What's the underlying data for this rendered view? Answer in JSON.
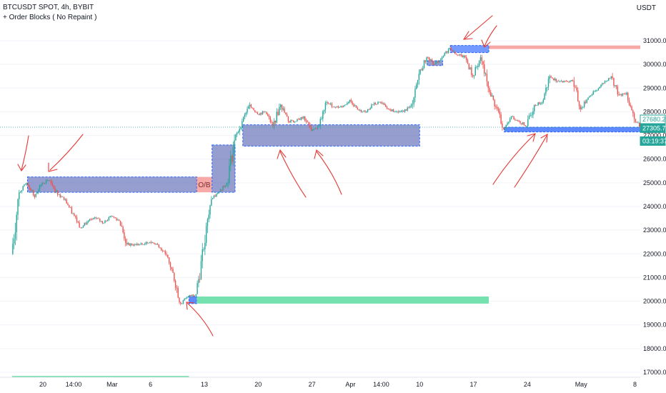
{
  "header": {
    "symbol_line": "BTCUSDT SPOT, 4h, BYBIT",
    "indicator_line": "+ Order Blocks ( No Repaint )",
    "currency": "USDT"
  },
  "annotations": {
    "ob_label": "O/B"
  },
  "price_tags": [
    {
      "name": "reference-price-tag",
      "text": "27680.28",
      "value": 27680.28,
      "style": "outline",
      "color": "#26a69a"
    },
    {
      "name": "last-price-tag",
      "text": "27305.76",
      "value": 27305.76,
      "style": "filled",
      "color": "#26a69a"
    },
    {
      "name": "countdown-tag",
      "text": "03:19:37",
      "value": 27090,
      "style": "filled",
      "color": "#26a69a"
    }
  ],
  "colors": {
    "up": "#26a69a",
    "down": "#ef5350",
    "bull_block": "#2962ff",
    "bear_block": "#ef5350",
    "mitigated_block": "#3f4fa8",
    "target_zone": "#5cdca0",
    "annotation_ink": "#e53935"
  },
  "chart_data": {
    "type": "candlestick",
    "title": "BTCUSDT SPOT, 4h, BYBIT",
    "ylim": [
      16700,
      31700
    ],
    "y_ticks": [
      "31000.00",
      "30000.00",
      "29000.00",
      "28000.00",
      "27000.00",
      "26000.00",
      "25000.00",
      "24000.00",
      "23000.00",
      "22000.00",
      "21000.00",
      "20000.00",
      "19000.00",
      "18000.00",
      "17000.00"
    ],
    "x_ticks": [
      "20",
      "14:00",
      "Mar",
      "6",
      "13",
      "20",
      "27",
      "Apr",
      "14:00",
      "10",
      "17",
      "24",
      "May",
      "8"
    ],
    "close_path": [
      [
        "Feb 16",
        22000
      ],
      [
        "Feb 17",
        24600
      ],
      [
        "Feb 18",
        25000
      ],
      [
        "Feb 19",
        24400
      ],
      [
        "Feb 20",
        25000
      ],
      [
        "Feb 21",
        25100
      ],
      [
        "Feb 22",
        24500
      ],
      [
        "Feb 23",
        24300
      ],
      [
        "Feb 24",
        23700
      ],
      [
        "Feb 25",
        23100
      ],
      [
        "Feb 26",
        23400
      ],
      [
        "Feb 27",
        23500
      ],
      [
        "Feb 28",
        23300
      ],
      [
        "Mar 1",
        23600
      ],
      [
        "Mar 2",
        23400
      ],
      [
        "Mar 3",
        22400
      ],
      [
        "Mar 4",
        22400
      ],
      [
        "Mar 5",
        22400
      ],
      [
        "Mar 6",
        22500
      ],
      [
        "Mar 7",
        22400
      ],
      [
        "Mar 8",
        22000
      ],
      [
        "Mar 9",
        21200
      ],
      [
        "Mar 10",
        19900
      ],
      [
        "Mar 11",
        20200
      ],
      [
        "Mar 12",
        20300
      ],
      [
        "Mar 13",
        22200
      ],
      [
        "Mar 14",
        24300
      ],
      [
        "Mar 15",
        24600
      ],
      [
        "Mar 16",
        25000
      ],
      [
        "Mar 17",
        26800
      ],
      [
        "Mar 18",
        27600
      ],
      [
        "Mar 19",
        28300
      ],
      [
        "Mar 20",
        27900
      ],
      [
        "Mar 21",
        28000
      ],
      [
        "Mar 22",
        27400
      ],
      [
        "Mar 23",
        28300
      ],
      [
        "Mar 24",
        27600
      ],
      [
        "Mar 25",
        27600
      ],
      [
        "Mar 26",
        27800
      ],
      [
        "Mar 27",
        27200
      ],
      [
        "Mar 28",
        27400
      ],
      [
        "Mar 29",
        28400
      ],
      [
        "Mar 30",
        28200
      ],
      [
        "Mar 31",
        28200
      ],
      [
        "Apr 1",
        28500
      ],
      [
        "Apr 2",
        28100
      ],
      [
        "Apr 3",
        28000
      ],
      [
        "Apr 4",
        28300
      ],
      [
        "Apr 5",
        28400
      ],
      [
        "Apr 6",
        28100
      ],
      [
        "Apr 7",
        28000
      ],
      [
        "Apr 8",
        28000
      ],
      [
        "Apr 9",
        28300
      ],
      [
        "Apr 10",
        29600
      ],
      [
        "Apr 11",
        30300
      ],
      [
        "Apr 12",
        30000
      ],
      [
        "Apr 13",
        30300
      ],
      [
        "Apr 14",
        30700
      ],
      [
        "Apr 15",
        30400
      ],
      [
        "Apr 16",
        30300
      ],
      [
        "Apr 17",
        29500
      ],
      [
        "Apr 18",
        30300
      ],
      [
        "Apr 19",
        29000
      ],
      [
        "Apr 20",
        28200
      ],
      [
        "Apr 21",
        27300
      ],
      [
        "Apr 22",
        27800
      ],
      [
        "Apr 23",
        27600
      ],
      [
        "Apr 24",
        27400
      ],
      [
        "Apr 25",
        28300
      ],
      [
        "Apr 26",
        28400
      ],
      [
        "Apr 27",
        29500
      ],
      [
        "Apr 28",
        29300
      ],
      [
        "Apr 29",
        29300
      ],
      [
        "Apr 30",
        29300
      ],
      [
        "May 1",
        28100
      ],
      [
        "May 2",
        28600
      ],
      [
        "May 3",
        28900
      ],
      [
        "May 4",
        29200
      ],
      [
        "May 5",
        29500
      ],
      [
        "May 6",
        28700
      ],
      [
        "May 7",
        28800
      ],
      [
        "May 8",
        27700
      ],
      [
        "May 9",
        27305.76
      ]
    ],
    "order_blocks": [
      {
        "name": "bearish-order-block-feb",
        "kind": "mitigated",
        "from": "Feb 18",
        "to": "Mar 12",
        "top": 25250,
        "bottom": 24600
      },
      {
        "name": "ob-tag",
        "kind": "bearish",
        "from": "Mar 12",
        "to": "Mar 14",
        "top": 25250,
        "bottom": 24600
      },
      {
        "name": "bullish-order-block-mar-13",
        "kind": "mitigated",
        "from": "Mar 14",
        "to": "Mar 17",
        "top": 26600,
        "bottom": 24600
      },
      {
        "name": "bullish-order-block-mar-18",
        "kind": "mitigated",
        "from": "Mar 18",
        "to": "Apr 10",
        "top": 27450,
        "bottom": 26550
      },
      {
        "name": "demand-zone-mar-10",
        "kind": "bullish",
        "from": "Mar 11",
        "to": "Mar 12",
        "top": 20200,
        "bottom": 19900
      },
      {
        "name": "target-zone",
        "kind": "target",
        "from": "Mar 12",
        "to": "Apr 19",
        "top": 20200,
        "bottom": 19900
      },
      {
        "name": "small-order-block-apr-11",
        "kind": "mitigated",
        "from": "Apr 11",
        "to": "Apr 13",
        "top": 30150,
        "bottom": 29950
      },
      {
        "name": "bearish-order-block-apr-14",
        "kind": "mixed",
        "from": "Apr 14",
        "to": "Apr 19",
        "top": 30800,
        "bottom": 30500
      },
      {
        "name": "supply-zone",
        "kind": "bearish",
        "from": "Apr 19",
        "to": "May 10",
        "top": 30800,
        "bottom": 30650
      },
      {
        "name": "bullish-order-block-apr-21",
        "kind": "bullish",
        "from": "Apr 21",
        "to": "May 10",
        "top": 27350,
        "bottom": 27150
      }
    ],
    "reference_line": {
      "value": 27350,
      "style": "dotted"
    },
    "bottom_line": {
      "value": 16820,
      "from": "Feb 16",
      "to": "Mar 11"
    }
  }
}
